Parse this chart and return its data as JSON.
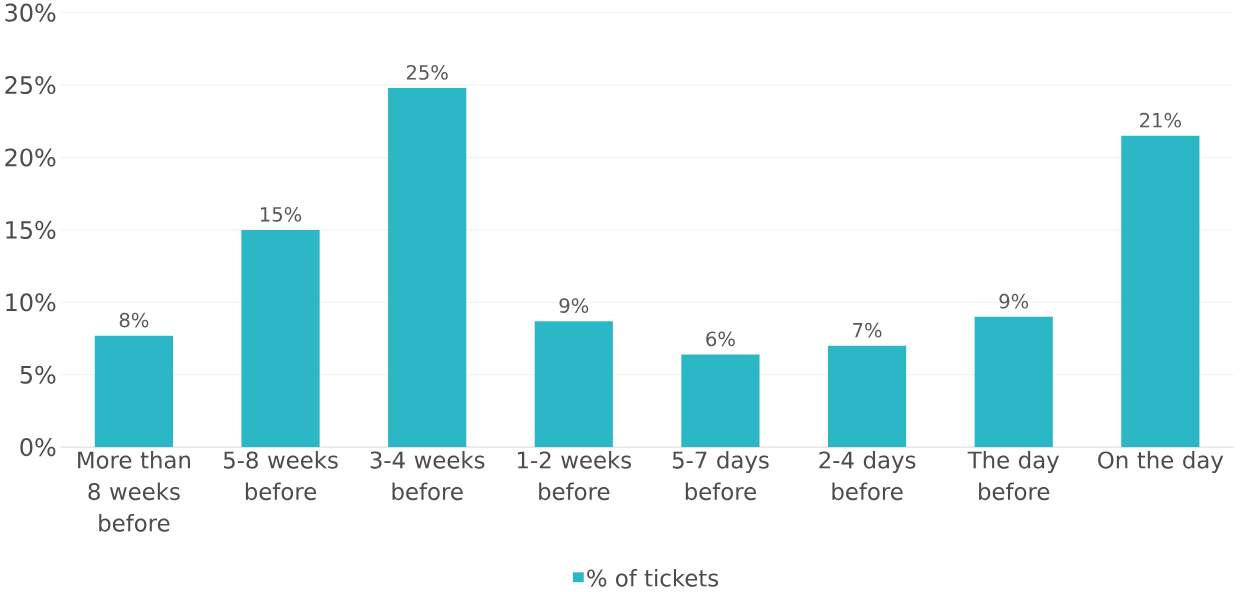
{
  "chart_data": {
    "type": "bar",
    "categories": [
      "More than 8 weeks before",
      "5-8 weeks before",
      "3-4 weeks before",
      "1-2 weeks before",
      "5-7 days before",
      "2-4 days before",
      "The day before",
      "On the day"
    ],
    "series": [
      {
        "name": "% of tickets",
        "color": "#2bb7c5",
        "values": [
          7.7,
          15.0,
          24.8,
          8.7,
          6.4,
          7.0,
          9.0,
          21.5
        ],
        "value_labels": [
          "8%",
          "15%",
          "25%",
          "9%",
          "6%",
          "7%",
          "9%",
          "21%"
        ]
      }
    ],
    "ylim": [
      0,
      30
    ],
    "yticks": [
      {
        "value": 0,
        "label": "0%"
      },
      {
        "value": 5,
        "label": "5%"
      },
      {
        "value": 10,
        "label": "10%"
      },
      {
        "value": 15,
        "label": "15%"
      },
      {
        "value": 20,
        "label": "20%"
      },
      {
        "value": 25,
        "label": "25%"
      },
      {
        "value": 30,
        "label": "30%"
      }
    ],
    "grid": "y",
    "legend": "bottom"
  }
}
